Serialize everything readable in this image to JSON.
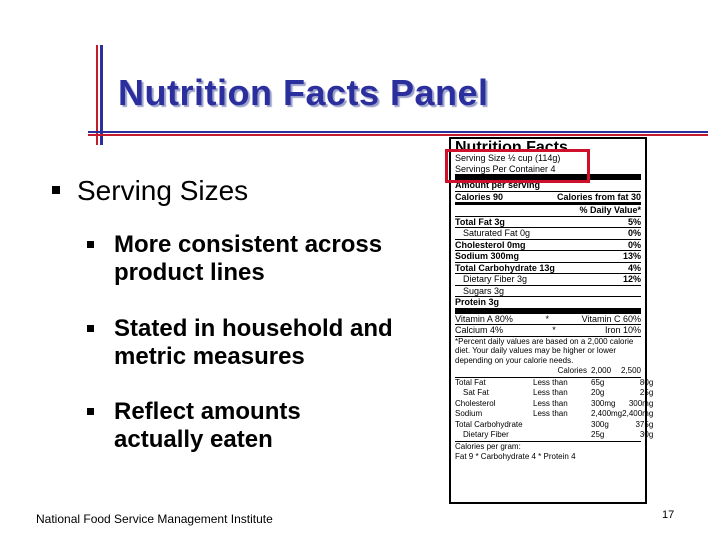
{
  "slide": {
    "title": "Nutrition Facts Panel",
    "heading": "Serving Sizes",
    "bullets": [
      "More consistent across product lines",
      "Stated in household and metric measures",
      "Reflect amounts actually eaten"
    ],
    "footer": "National Food Service Management Institute",
    "page_number": "17",
    "colors": {
      "title": "#2b2f9e",
      "accent_red": "#c51c2d",
      "highlight": "#d0102a"
    }
  },
  "label": {
    "title": "Nutrition Facts",
    "serving_size": "Serving Size ½ cup (114g)",
    "servings_per_container": "Servings Per Container 4",
    "amount_per_serving": "Amount per serving",
    "calories": "Calories 90",
    "calories_from_fat": "Calories from fat 30",
    "dv_header": "% Daily Value*",
    "nutrients": [
      {
        "name": "Total Fat 3g",
        "dv": "5%"
      },
      {
        "name": "Saturated Fat 0g",
        "dv": "0%"
      },
      {
        "name": "Cholesterol 0mg",
        "dv": "0%"
      },
      {
        "name": "Sodium 300mg",
        "dv": "13%"
      },
      {
        "name": "Total Carbohydrate 13g",
        "dv": "4%"
      },
      {
        "name": "Dietary Fiber 3g",
        "dv": "12%"
      },
      {
        "name": "Sugars 3g",
        "dv": ""
      }
    ],
    "protein": "Protein 3g",
    "vitamin_a": "Vitamin A 80%",
    "vitamin_c": "Vitamin C 60%",
    "calcium": "Calcium 4%",
    "iron": "Iron 10%",
    "star": "*",
    "footnote": "*Percent daily values are based on a 2,000 calorie diet. Your daily values may be higher or lower depending on your calorie needs.",
    "table_header": [
      "",
      "Calories",
      "2,000",
      "2,500"
    ],
    "table_rows": [
      [
        "Total Fat",
        "Less than",
        "65g",
        "80g"
      ],
      [
        "Sat Fat",
        "Less than",
        "20g",
        "25g"
      ],
      [
        "Cholesterol",
        "Less than",
        "300mg",
        "300mg"
      ],
      [
        "Sodium",
        "Less than",
        "2,400mg",
        "2,400mg"
      ],
      [
        "Total Carbohydrate",
        "",
        "300g",
        "375g"
      ],
      [
        "Dietary Fiber",
        "",
        "25g",
        "30g"
      ]
    ],
    "calories_per_gram": "Calories per gram:",
    "per_gram_values": "Fat 9 * Carbohydrate 4 * Protein 4"
  }
}
